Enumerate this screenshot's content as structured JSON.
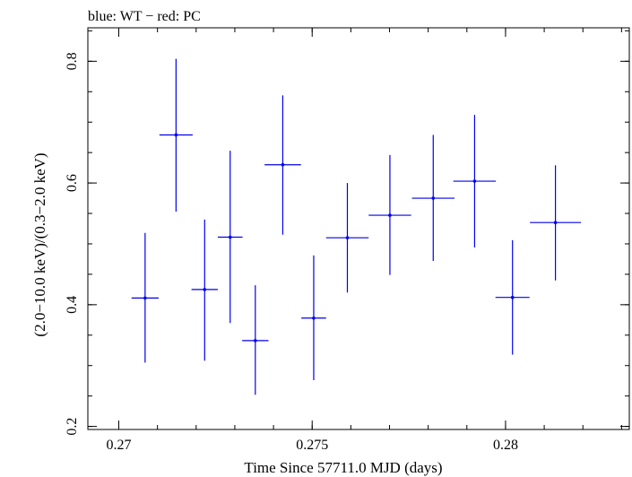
{
  "chart_data": {
    "type": "scatter",
    "title": "blue: WT − red: PC",
    "xlabel": "Time Since 57711.0 MJD (days)",
    "ylabel": "(2.0−10.0 keV)/(0.3−2.0 keV)",
    "xlim": [
      0.2692,
      0.2832
    ],
    "ylim": [
      0.195,
      0.855
    ],
    "xticks": [
      {
        "value": 0.27,
        "label": "0.27"
      },
      {
        "value": 0.275,
        "label": "0.275"
      },
      {
        "value": 0.28,
        "label": "0.28"
      }
    ],
    "xminor_step": 0.001,
    "yticks": [
      {
        "value": 0.2,
        "label": "0.2"
      },
      {
        "value": 0.4,
        "label": "0.4"
      },
      {
        "value": 0.6,
        "label": "0.6"
      },
      {
        "value": 0.8,
        "label": "0.8"
      }
    ],
    "yminor_step": 0.05,
    "grid": false,
    "series": [
      {
        "color": "#0000ee",
        "points": [
          {
            "x": 0.27068,
            "xerr": 0.00035,
            "y": 0.411,
            "ylo": 0.305,
            "yhi": 0.518
          },
          {
            "x": 0.27148,
            "xerr": 0.00043,
            "y": 0.679,
            "ylo": 0.553,
            "yhi": 0.804
          },
          {
            "x": 0.27222,
            "xerr": 0.00034,
            "y": 0.425,
            "ylo": 0.308,
            "yhi": 0.54
          },
          {
            "x": 0.27288,
            "xerr": 0.00032,
            "y": 0.511,
            "ylo": 0.37,
            "yhi": 0.653
          },
          {
            "x": 0.27353,
            "xerr": 0.00034,
            "y": 0.341,
            "ylo": 0.252,
            "yhi": 0.432
          },
          {
            "x": 0.27424,
            "xerr": 0.00047,
            "y": 0.63,
            "ylo": 0.515,
            "yhi": 0.744
          },
          {
            "x": 0.27504,
            "xerr": 0.00032,
            "y": 0.378,
            "ylo": 0.276,
            "yhi": 0.481
          },
          {
            "x": 0.27591,
            "xerr": 0.00055,
            "y": 0.51,
            "ylo": 0.42,
            "yhi": 0.6
          },
          {
            "x": 0.27701,
            "xerr": 0.00055,
            "y": 0.547,
            "ylo": 0.449,
            "yhi": 0.646
          },
          {
            "x": 0.27813,
            "xerr": 0.00055,
            "y": 0.575,
            "ylo": 0.472,
            "yhi": 0.679
          },
          {
            "x": 0.2792,
            "xerr": 0.00055,
            "y": 0.603,
            "ylo": 0.494,
            "yhi": 0.712
          },
          {
            "x": 0.28018,
            "xerr": 0.00044,
            "y": 0.412,
            "ylo": 0.318,
            "yhi": 0.506
          },
          {
            "x": 0.28129,
            "xerr": 0.00066,
            "y": 0.535,
            "ylo": 0.44,
            "yhi": 0.629
          }
        ]
      }
    ]
  }
}
